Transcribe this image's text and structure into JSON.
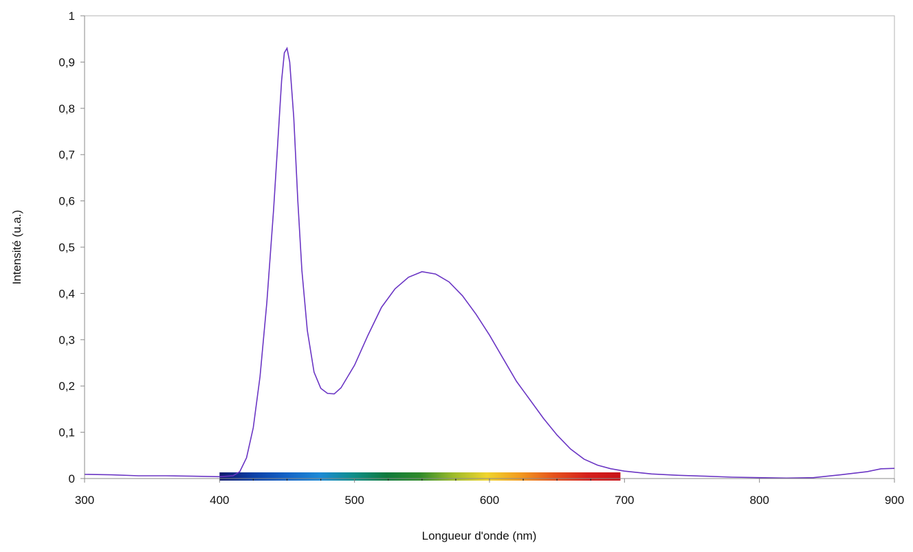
{
  "chart_data": {
    "type": "line",
    "title": "",
    "xlabel": "Longueur d'onde (nm)",
    "ylabel": "Intensité (u.a.)",
    "xlim": [
      300,
      900
    ],
    "ylim": [
      0,
      1
    ],
    "grid": false,
    "legend": "none",
    "x_ticks": [
      "300",
      "400",
      "500",
      "600",
      "700",
      "800",
      "900"
    ],
    "y_ticks": [
      "0",
      "0,1",
      "0,2",
      "0,3",
      "0,4",
      "0,5",
      "0,6",
      "0,7",
      "0,8",
      "0,9",
      "1"
    ],
    "series": [
      {
        "color": "#6a35c4",
        "points": [
          [
            300,
            0.009
          ],
          [
            320,
            0.008
          ],
          [
            340,
            0.006
          ],
          [
            360,
            0.006
          ],
          [
            380,
            0.005
          ],
          [
            400,
            0.004
          ],
          [
            410,
            0.006
          ],
          [
            415,
            0.015
          ],
          [
            420,
            0.045
          ],
          [
            425,
            0.11
          ],
          [
            430,
            0.22
          ],
          [
            435,
            0.38
          ],
          [
            440,
            0.58
          ],
          [
            443,
            0.72
          ],
          [
            446,
            0.86
          ],
          [
            448,
            0.92
          ],
          [
            450,
            0.93
          ],
          [
            452,
            0.9
          ],
          [
            455,
            0.78
          ],
          [
            458,
            0.6
          ],
          [
            461,
            0.45
          ],
          [
            465,
            0.32
          ],
          [
            470,
            0.23
          ],
          [
            475,
            0.195
          ],
          [
            480,
            0.184
          ],
          [
            485,
            0.183
          ],
          [
            490,
            0.196
          ],
          [
            500,
            0.245
          ],
          [
            510,
            0.31
          ],
          [
            520,
            0.37
          ],
          [
            530,
            0.41
          ],
          [
            540,
            0.435
          ],
          [
            550,
            0.447
          ],
          [
            560,
            0.442
          ],
          [
            570,
            0.425
          ],
          [
            580,
            0.395
          ],
          [
            590,
            0.355
          ],
          [
            600,
            0.31
          ],
          [
            610,
            0.26
          ],
          [
            620,
            0.21
          ],
          [
            630,
            0.17
          ],
          [
            640,
            0.13
          ],
          [
            650,
            0.094
          ],
          [
            660,
            0.064
          ],
          [
            670,
            0.042
          ],
          [
            680,
            0.029
          ],
          [
            690,
            0.021
          ],
          [
            700,
            0.016
          ],
          [
            720,
            0.01
          ],
          [
            740,
            0.007
          ],
          [
            760,
            0.005
          ],
          [
            780,
            0.003
          ],
          [
            800,
            0.002
          ],
          [
            820,
            0.001
          ],
          [
            840,
            0.002
          ],
          [
            860,
            0.008
          ],
          [
            880,
            0.015
          ],
          [
            890,
            0.021
          ],
          [
            900,
            0.022
          ]
        ]
      }
    ],
    "spectrum_bar": {
      "x_range": [
        400,
        697
      ],
      "colors": [
        "#111b6e",
        "#0b3fa6",
        "#1463c6",
        "#1c8ad6",
        "#0f8e8a",
        "#0f7a3c",
        "#2f8a2a",
        "#9dbb2a",
        "#f0d42c",
        "#f29a1f",
        "#e5521c",
        "#d51f1b",
        "#c8141a"
      ]
    }
  }
}
